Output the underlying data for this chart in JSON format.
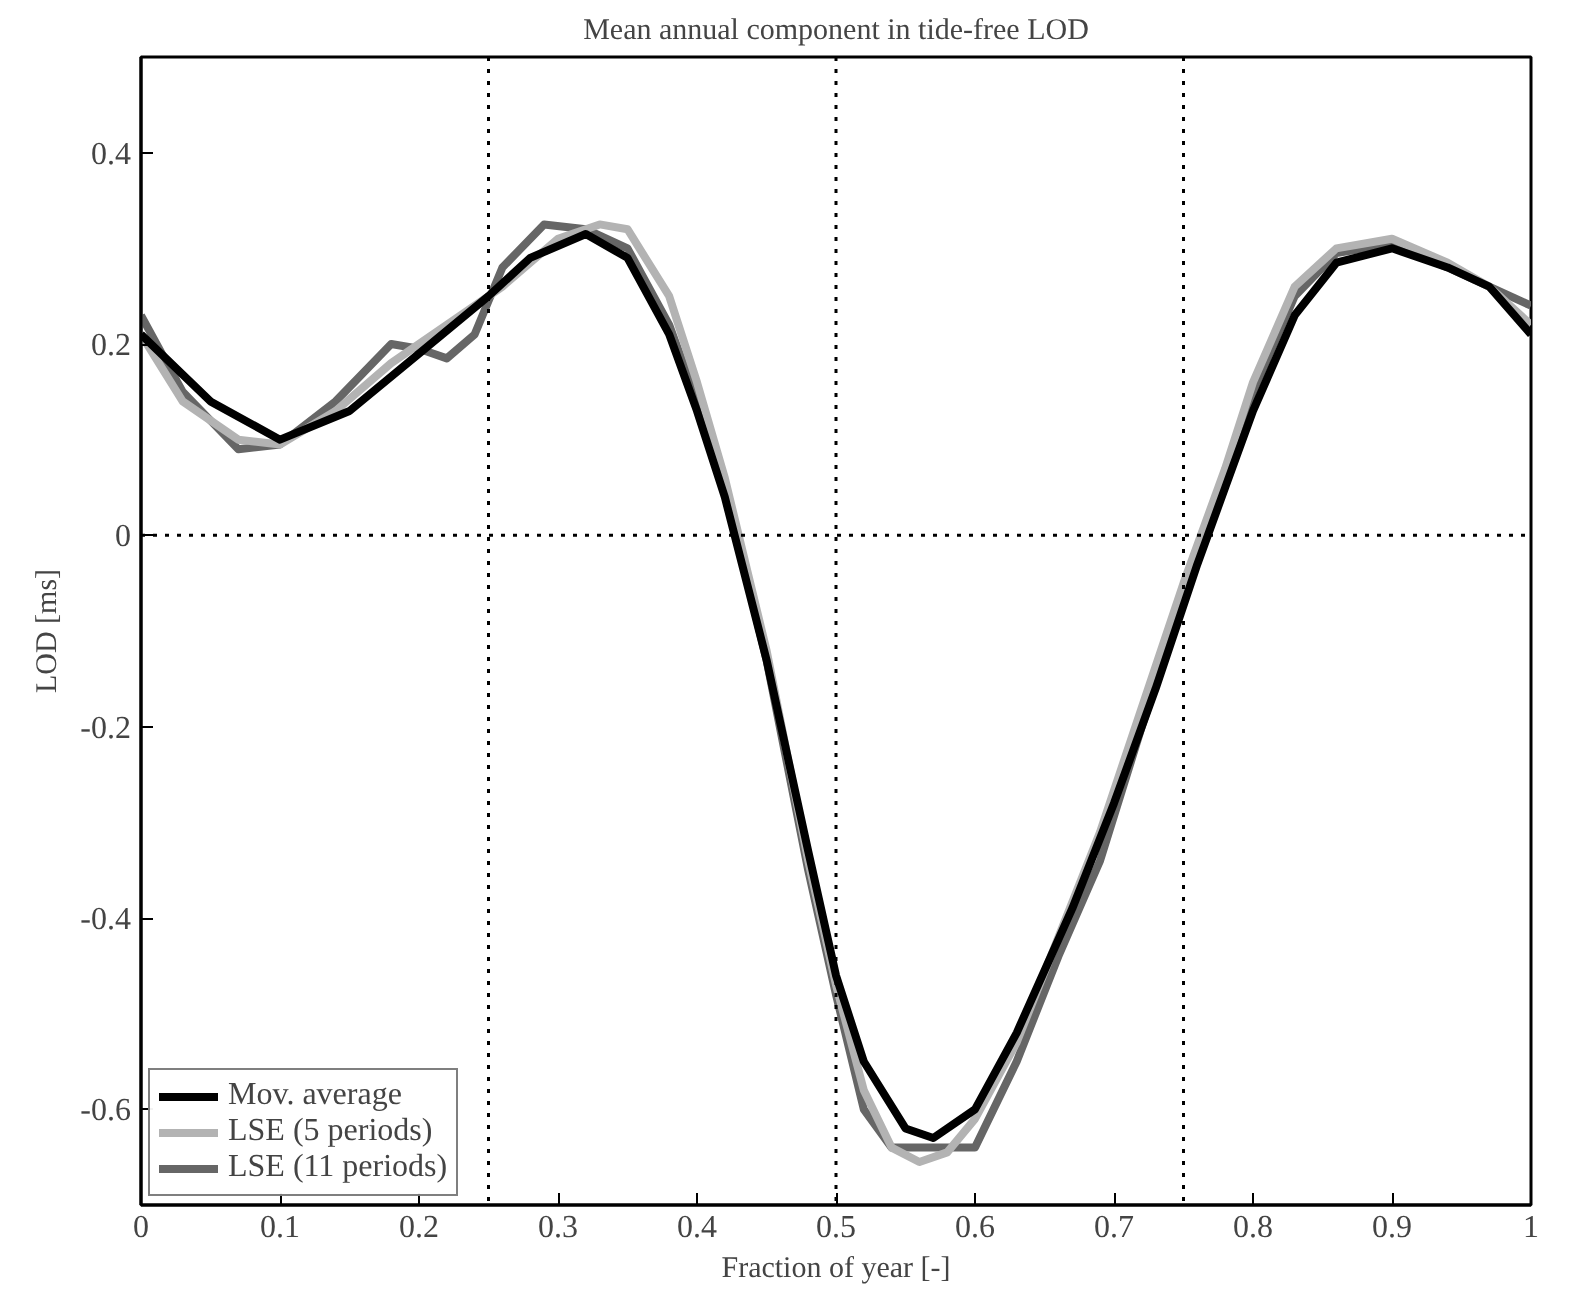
{
  "chart_data": {
    "type": "line",
    "title": "Mean annual component in tide-free LOD",
    "xlabel": "Fraction of year [-]",
    "ylabel": "LOD [ms]",
    "xlim": [
      0,
      1
    ],
    "ylim": [
      -0.7,
      0.5
    ],
    "xticks": [
      0,
      0.1,
      0.2,
      0.3,
      0.4,
      0.5,
      0.6,
      0.7,
      0.8,
      0.9,
      1
    ],
    "yticks": [
      -0.6,
      -0.4,
      -0.2,
      0,
      0.2,
      0.4
    ],
    "grid": false,
    "legend": "bottom left",
    "line_style": "solid",
    "marker": "none",
    "ref_lines": [
      {
        "axis": "x",
        "value": 0.25,
        "line_style": "dotted"
      },
      {
        "axis": "x",
        "value": 0.5,
        "line_style": "dotted"
      },
      {
        "axis": "x",
        "value": 0.75,
        "line_style": "dotted"
      },
      {
        "axis": "y",
        "value": 0,
        "line_style": "dotted"
      }
    ],
    "series": [
      {
        "name": "LSE (11 periods)",
        "color": "#666666",
        "x": [
          0,
          0.03,
          0.07,
          0.1,
          0.14,
          0.18,
          0.2,
          0.22,
          0.24,
          0.26,
          0.29,
          0.32,
          0.35,
          0.38,
          0.4,
          0.42,
          0.45,
          0.48,
          0.5,
          0.52,
          0.54,
          0.57,
          0.6,
          0.63,
          0.66,
          0.69,
          0.72,
          0.75,
          0.78,
          0.8,
          0.83,
          0.86,
          0.9,
          0.94,
          0.97,
          1
        ],
        "values": [
          0.23,
          0.15,
          0.09,
          0.095,
          0.14,
          0.2,
          0.195,
          0.185,
          0.21,
          0.28,
          0.325,
          0.32,
          0.3,
          0.22,
          0.14,
          0.05,
          -0.13,
          -0.35,
          -0.48,
          -0.6,
          -0.64,
          -0.64,
          -0.64,
          -0.55,
          -0.44,
          -0.34,
          -0.2,
          -0.07,
          0.06,
          0.15,
          0.25,
          0.295,
          0.305,
          0.28,
          0.26,
          0.24
        ]
      },
      {
        "name": "LSE (5 periods)",
        "color": "#b3b3b3",
        "x": [
          0,
          0.03,
          0.07,
          0.1,
          0.14,
          0.18,
          0.22,
          0.26,
          0.3,
          0.33,
          0.35,
          0.38,
          0.4,
          0.42,
          0.45,
          0.48,
          0.5,
          0.52,
          0.54,
          0.56,
          0.58,
          0.6,
          0.63,
          0.66,
          0.69,
          0.72,
          0.75,
          0.78,
          0.8,
          0.83,
          0.86,
          0.9,
          0.94,
          0.97,
          1
        ],
        "values": [
          0.21,
          0.14,
          0.1,
          0.095,
          0.13,
          0.18,
          0.22,
          0.26,
          0.31,
          0.325,
          0.32,
          0.25,
          0.16,
          0.06,
          -0.12,
          -0.34,
          -0.47,
          -0.58,
          -0.64,
          -0.655,
          -0.645,
          -0.61,
          -0.53,
          -0.42,
          -0.31,
          -0.18,
          -0.05,
          0.07,
          0.16,
          0.26,
          0.3,
          0.31,
          0.285,
          0.26,
          0.22
        ]
      },
      {
        "name": "Mov. average",
        "color": "#000000",
        "x": [
          0,
          0.05,
          0.1,
          0.15,
          0.2,
          0.25,
          0.28,
          0.32,
          0.35,
          0.38,
          0.4,
          0.42,
          0.45,
          0.48,
          0.5,
          0.52,
          0.55,
          0.57,
          0.6,
          0.63,
          0.67,
          0.7,
          0.73,
          0.76,
          0.78,
          0.8,
          0.83,
          0.86,
          0.9,
          0.94,
          0.97,
          1
        ],
        "values": [
          0.21,
          0.14,
          0.1,
          0.13,
          0.19,
          0.25,
          0.29,
          0.315,
          0.29,
          0.21,
          0.13,
          0.04,
          -0.13,
          -0.33,
          -0.46,
          -0.55,
          -0.62,
          -0.63,
          -0.6,
          -0.52,
          -0.39,
          -0.28,
          -0.16,
          -0.03,
          0.05,
          0.13,
          0.23,
          0.285,
          0.3,
          0.28,
          0.26,
          0.21
        ]
      }
    ]
  }
}
